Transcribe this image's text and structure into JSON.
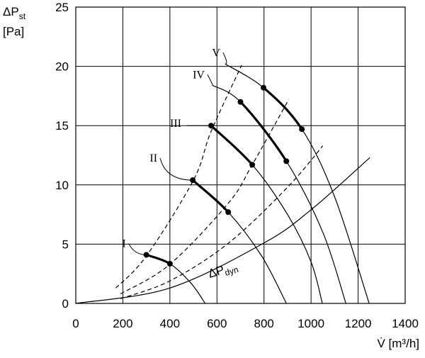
{
  "chart_data": {
    "type": "line",
    "ylabel": {
      "symbol": "ΔP",
      "subscript": "st",
      "unit": "[Pa]"
    },
    "xlabel": "V̇ [m³/h]",
    "xlim": [
      0,
      1400
    ],
    "xticks": [
      0,
      200,
      400,
      600,
      800,
      1000,
      1200,
      1400
    ],
    "ylim": [
      0,
      25
    ],
    "yticks": [
      0,
      5,
      10,
      15,
      20,
      25
    ],
    "grid": true,
    "color": "#000000",
    "series": [
      {
        "name": "I",
        "style": "solid",
        "highlight": [
          0,
          1
        ],
        "x": [
          300,
          400,
          490,
          550
        ],
        "values": [
          4.1,
          3.35,
          1.7,
          0
        ]
      },
      {
        "name": "II",
        "style": "solid",
        "highlight": [
          0,
          1
        ],
        "x": [
          497,
          648,
          790,
          895
        ],
        "values": [
          10.4,
          7.7,
          4.0,
          0
        ]
      },
      {
        "name": "III",
        "style": "solid",
        "highlight": [
          0,
          1
        ],
        "x": [
          575,
          750,
          900,
          1000,
          1048
        ],
        "values": [
          15.0,
          11.7,
          7.5,
          3.5,
          0
        ]
      },
      {
        "name": "IV",
        "style": "solid",
        "highlight": [
          1,
          2
        ],
        "x": [
          581,
          700,
          895,
          1050,
          1148
        ],
        "values": [
          18.4,
          17.0,
          12.0,
          6.0,
          0
        ]
      },
      {
        "name": "V",
        "style": "solid",
        "highlight": [
          1,
          2
        ],
        "x": [
          635,
          798,
          961,
          1100,
          1247
        ],
        "values": [
          20.2,
          18.2,
          14.7,
          9.0,
          0
        ]
      },
      {
        "style": "dashed",
        "x": [
          170,
          300,
          500,
          575,
          705
        ],
        "values": [
          1.3,
          4.0,
          10.4,
          14.5,
          20.1
        ]
      },
      {
        "style": "dashed",
        "x": [
          190,
          400,
          650,
          750,
          905
        ],
        "values": [
          0.8,
          3.3,
          8.5,
          11.7,
          17.2
        ]
      },
      {
        "style": "dashed",
        "x": [
          190,
          400,
          650,
          900,
          1050
        ],
        "values": [
          0.4,
          1.9,
          5.1,
          9.8,
          13.3
        ]
      },
      {
        "name": "ΔP",
        "name_sub": "dyn",
        "style": "solid",
        "x": [
          0,
          400,
          800,
          1000,
          1250
        ],
        "values": [
          0,
          1.3,
          5.1,
          7.9,
          12.3
        ]
      }
    ]
  }
}
